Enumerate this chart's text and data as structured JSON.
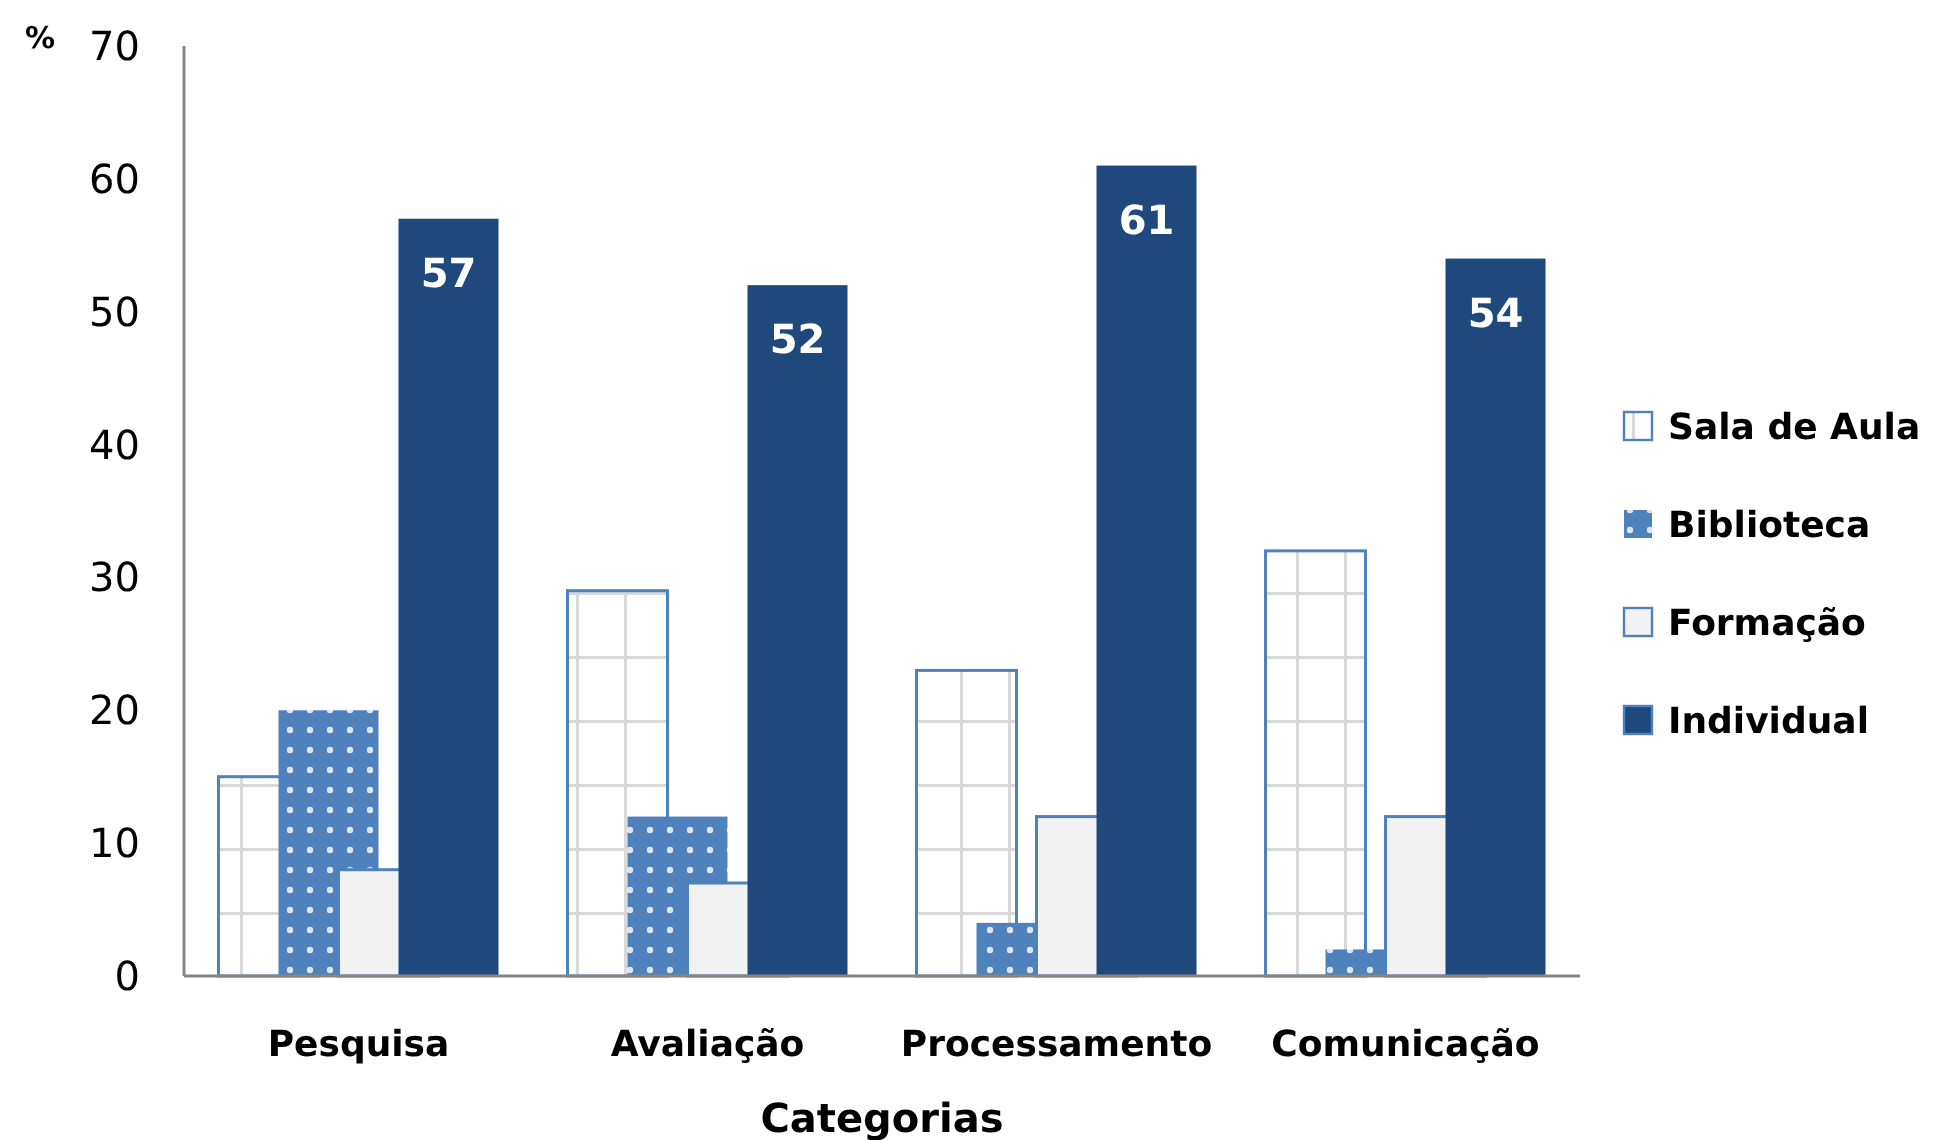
{
  "chart_data": {
    "type": "bar",
    "ylabel": "%",
    "xlabel": "Categorias",
    "categories": [
      "Pesquisa",
      "Avaliação",
      "Processamento",
      "Comunicação"
    ],
    "ylim": [
      0,
      70
    ],
    "yticks": [
      0,
      10,
      20,
      30,
      40,
      50,
      60,
      70
    ],
    "grid": false,
    "legend": "right",
    "series": [
      {
        "name": "Sala de Aula",
        "color": "#4f81bd",
        "values": [
          15,
          29,
          23,
          32
        ]
      },
      {
        "name": "Biblioteca",
        "color": "#4f81bd",
        "values": [
          20,
          12,
          4,
          2
        ]
      },
      {
        "name": "Formação",
        "color": "#f2f2f2",
        "values": [
          8,
          7,
          12,
          12
        ]
      },
      {
        "name": "Individual",
        "color": "#1f497d",
        "values": [
          57,
          52,
          61,
          54
        ],
        "value_labels": [
          "57",
          "52",
          "61",
          "54"
        ]
      }
    ]
  }
}
